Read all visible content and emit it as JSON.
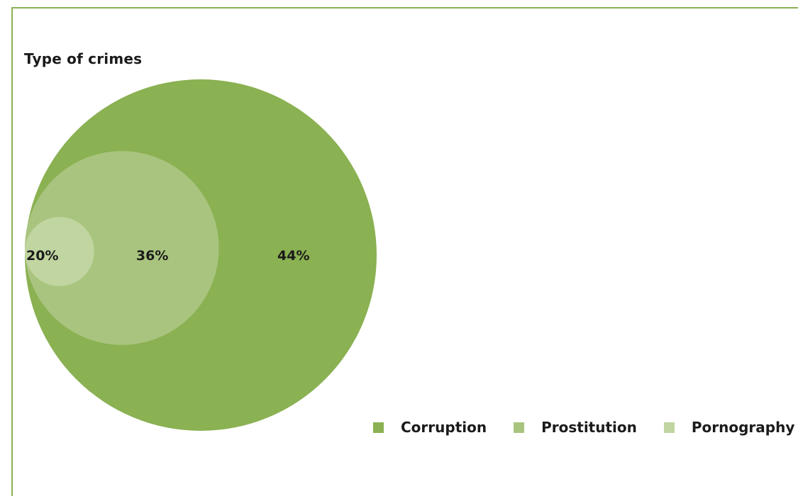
{
  "chart_data": {
    "type": "nested-bubble",
    "title": "Type of crimes",
    "series": [
      {
        "name": "Corruption",
        "value": 44,
        "label": "44%",
        "color": "#8ab152"
      },
      {
        "name": "Prostitution",
        "value": 36,
        "label": "36%",
        "color": "#a9c47f"
      },
      {
        "name": "Pornography",
        "value": 20,
        "label": "20%",
        "color": "#c0d5a0"
      }
    ],
    "legend_position": "bottom-right"
  }
}
